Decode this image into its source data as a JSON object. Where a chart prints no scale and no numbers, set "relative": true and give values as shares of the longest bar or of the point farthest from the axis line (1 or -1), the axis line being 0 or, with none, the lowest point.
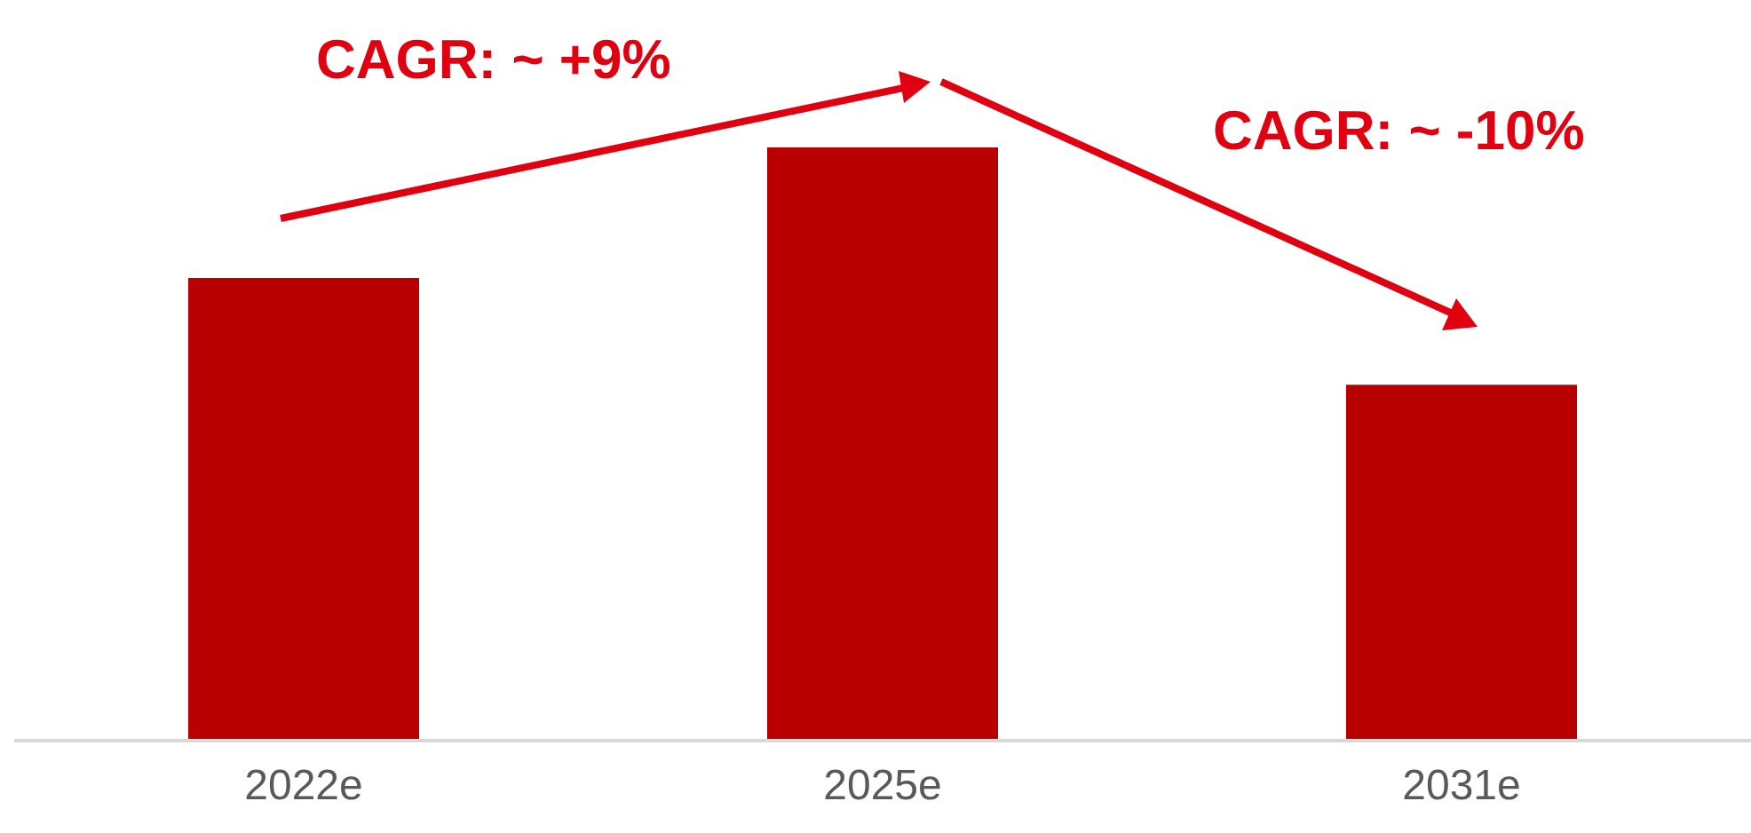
{
  "chart_data": {
    "type": "bar",
    "relative": true,
    "categories": [
      "2022e",
      "2025e",
      "2031e"
    ],
    "values": [
      0.78,
      1,
      0.6
    ],
    "color": "#b80000",
    "annotations": [
      "CAGR: ~ +9%",
      "CAGR: ~ -10%"
    ]
  }
}
